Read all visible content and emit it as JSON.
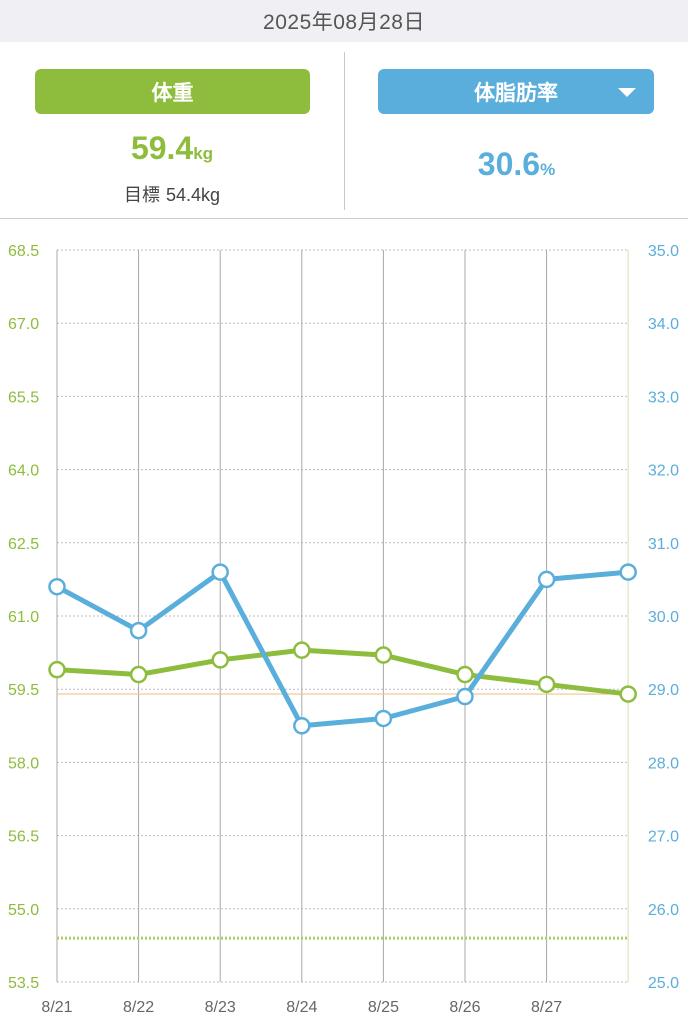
{
  "date": "2025年08月28日",
  "weight": {
    "label": "体重",
    "value": "59.4",
    "unit": "kg",
    "goal_label": "目標",
    "goal_value": "54.4kg"
  },
  "bodyfat": {
    "label": "体脂肪率",
    "value": "30.6",
    "unit": "%"
  },
  "colors": {
    "weight": "#8ebc3c",
    "bodyfat": "#5aaedc",
    "goal_line": "#a9cf6a",
    "current_line": "#f2c48a"
  },
  "chart_data": {
    "type": "line",
    "x": [
      "8/21",
      "8/22",
      "8/23",
      "8/24",
      "8/25",
      "8/26",
      "8/27",
      "8/28"
    ],
    "x_tick_labels": [
      "8/21",
      "8/22",
      "8/23",
      "8/24",
      "8/25",
      "8/26",
      "8/27"
    ],
    "y_left": {
      "ylim": [
        53.5,
        68.5
      ],
      "ticks": [
        "68.5",
        "67.0",
        "65.5",
        "64.0",
        "62.5",
        "61.0",
        "59.5",
        "58.0",
        "56.5",
        "55.0",
        "53.5"
      ]
    },
    "y_right": {
      "ylim": [
        25.0,
        35.0
      ],
      "ticks": [
        "35.0",
        "34.0",
        "33.0",
        "32.0",
        "31.0",
        "30.0",
        "29.0",
        "28.0",
        "27.0",
        "26.0",
        "25.0"
      ]
    },
    "series": [
      {
        "axis": "left",
        "values": [
          59.9,
          59.8,
          60.1,
          60.3,
          60.2,
          59.8,
          59.6,
          59.4
        ]
      },
      {
        "axis": "right",
        "values": [
          30.4,
          29.8,
          30.6,
          28.5,
          28.6,
          28.9,
          30.5,
          30.6
        ]
      }
    ],
    "reference_lines": [
      {
        "axis": "left",
        "value": 54.4,
        "style": "dotted"
      },
      {
        "axis": "left",
        "value": 59.4,
        "style": "solid"
      }
    ],
    "grid": true
  }
}
